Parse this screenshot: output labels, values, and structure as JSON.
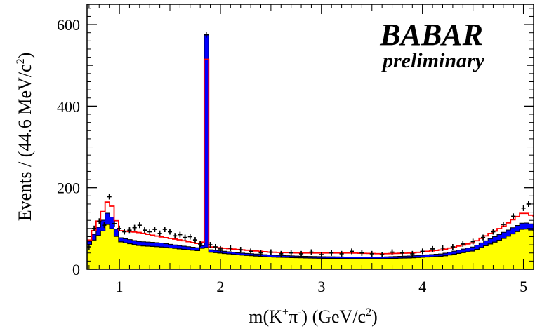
{
  "chart_data": {
    "type": "histogram",
    "title": "",
    "xlabel": "m(K+π-)   (GeV/c2)",
    "xlabel_parts": {
      "pre": "m(K",
      "sup1": "+",
      "mid": "π",
      "sup2": "-",
      "post": ")   (GeV/c",
      "sup3": "2",
      "end": ")"
    },
    "ylabel": "Events / (44.6 MeV/c2)",
    "ylabel_parts": {
      "pre": "Events / (44.6 MeV/c",
      "sup": "2",
      "end": ")"
    },
    "xlim": [
      0.68,
      5.1
    ],
    "ylim": [
      0,
      650
    ],
    "x_ticks": [
      1,
      2,
      3,
      4,
      5
    ],
    "y_ticks": [
      0,
      200,
      400,
      600
    ],
    "bin_width": 0.0446,
    "grid": false,
    "legend": "none",
    "logo": {
      "main": "BABAR",
      "sub": "preliminary"
    },
    "colors": {
      "yellow": "#ffff00",
      "blue": "#0000ff",
      "red": "#ff0000",
      "data": "#000000",
      "outline": "#000000"
    },
    "series": [
      {
        "style": "filled-yellow",
        "x": [
          0.68,
          0.9,
          1.0,
          1.2,
          1.4,
          1.6,
          1.8,
          1.84,
          1.9,
          2.2,
          2.5,
          2.8,
          3.0,
          3.3,
          3.6,
          3.9,
          4.2,
          4.5,
          4.8,
          5.0,
          5.1
        ],
        "values": [
          55,
          110,
          68,
          58,
          55,
          50,
          45,
          60,
          42,
          35,
          30,
          28,
          27,
          26,
          26,
          28,
          32,
          45,
          75,
          100,
          95
        ]
      },
      {
        "style": "filled-blue",
        "x": [
          0.68,
          0.9,
          1.0,
          1.2,
          1.4,
          1.6,
          1.8,
          1.84,
          1.9,
          2.2,
          2.5,
          2.8,
          3.0,
          3.3,
          3.6,
          3.9,
          4.2,
          4.5,
          4.8,
          5.0,
          5.1
        ],
        "values": [
          60,
          145,
          78,
          68,
          65,
          58,
          52,
          575,
          48,
          40,
          35,
          32,
          31,
          30,
          30,
          33,
          38,
          55,
          90,
          115,
          110
        ]
      },
      {
        "style": "line-red",
        "x": [
          0.68,
          0.9,
          1.0,
          1.2,
          1.4,
          1.6,
          1.8,
          1.84,
          1.9,
          2.2,
          2.5,
          2.8,
          3.0,
          3.3,
          3.6,
          3.9,
          4.2,
          4.5,
          4.8,
          5.0,
          5.1
        ],
        "values": [
          60,
          175,
          95,
          90,
          80,
          72,
          62,
          515,
          55,
          48,
          42,
          40,
          40,
          40,
          38,
          40,
          48,
          65,
          105,
          140,
          130
        ]
      },
      {
        "style": "data-points",
        "x": [
          0.7,
          0.75,
          0.8,
          0.85,
          0.9,
          0.95,
          1.0,
          1.05,
          1.1,
          1.15,
          1.2,
          1.25,
          1.3,
          1.35,
          1.4,
          1.45,
          1.5,
          1.55,
          1.6,
          1.65,
          1.7,
          1.75,
          1.8,
          1.86,
          1.9,
          1.95,
          2.0,
          2.1,
          2.2,
          2.3,
          2.4,
          2.5,
          2.6,
          2.7,
          2.8,
          2.9,
          3.0,
          3.1,
          3.2,
          3.3,
          3.4,
          3.5,
          3.6,
          3.7,
          3.8,
          3.9,
          4.0,
          4.1,
          4.2,
          4.3,
          4.4,
          4.5,
          4.6,
          4.7,
          4.8,
          4.9,
          5.0,
          5.05
        ],
        "values": [
          55,
          100,
          118,
          108,
          178,
          112,
          100,
          92,
          96,
          102,
          108,
          96,
          92,
          98,
          88,
          98,
          92,
          82,
          85,
          78,
          80,
          72,
          62,
          575,
          60,
          55,
          50,
          52,
          48,
          44,
          40,
          42,
          38,
          40,
          38,
          42,
          36,
          40,
          38,
          44,
          40,
          38,
          36,
          42,
          40,
          38,
          44,
          50,
          52,
          55,
          62,
          68,
          78,
          92,
          110,
          130,
          150,
          160
        ]
      }
    ]
  }
}
